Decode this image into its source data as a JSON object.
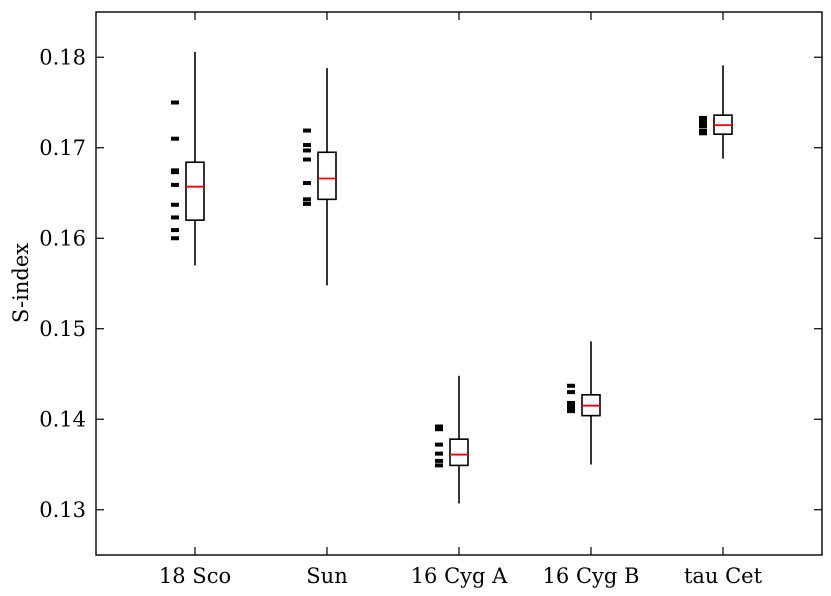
{
  "chart_data": {
    "type": "box",
    "title": "",
    "xlabel": "",
    "ylabel": "S-index",
    "ylim": [
      0.125,
      0.185
    ],
    "yticks": [
      0.13,
      0.14,
      0.15,
      0.16,
      0.17,
      0.18
    ],
    "ytick_labels": [
      "0.13",
      "0.14",
      "0.15",
      "0.16",
      "0.17",
      "0.18"
    ],
    "grid": false,
    "legend": "none",
    "colors": {
      "box": "#000000",
      "median": "#ff0000",
      "axes": "#000000"
    },
    "categories": [
      "18 Sco",
      "Sun",
      "16 Cyg A",
      "16 Cyg B",
      "tau Cet"
    ],
    "boxes": [
      {
        "label": "18 Sco",
        "whisker_low": 0.157,
        "q1": 0.162,
        "median": 0.1657,
        "q3": 0.1684,
        "whisker_high": 0.1806,
        "observations": [
          0.16,
          0.1609,
          0.1623,
          0.1637,
          0.1659,
          0.1673,
          0.1675,
          0.171,
          0.175
        ]
      },
      {
        "label": "Sun",
        "whisker_low": 0.1548,
        "q1": 0.1643,
        "median": 0.1666,
        "q3": 0.1695,
        "whisker_high": 0.1788,
        "observations": [
          0.1638,
          0.1643,
          0.1661,
          0.1687,
          0.1697,
          0.1703,
          0.1719
        ]
      },
      {
        "label": "16 Cyg A",
        "whisker_low": 0.1307,
        "q1": 0.1349,
        "median": 0.1361,
        "q3": 0.1378,
        "whisker_high": 0.1448,
        "observations": [
          0.1349,
          0.1354,
          0.1362,
          0.1372,
          0.1389,
          0.1392
        ]
      },
      {
        "label": "16 Cyg B",
        "whisker_low": 0.135,
        "q1": 0.1404,
        "median": 0.1415,
        "q3": 0.1427,
        "whisker_high": 0.1486,
        "observations": [
          0.1409,
          0.1412,
          0.1415,
          0.1418,
          0.143,
          0.1437
        ]
      },
      {
        "label": "tau Cet",
        "whisker_low": 0.1688,
        "q1": 0.1715,
        "median": 0.1725,
        "q3": 0.1736,
        "whisker_high": 0.1791,
        "observations": [
          0.1716,
          0.1719,
          0.1724,
          0.1726,
          0.173,
          0.1733
        ]
      }
    ]
  }
}
